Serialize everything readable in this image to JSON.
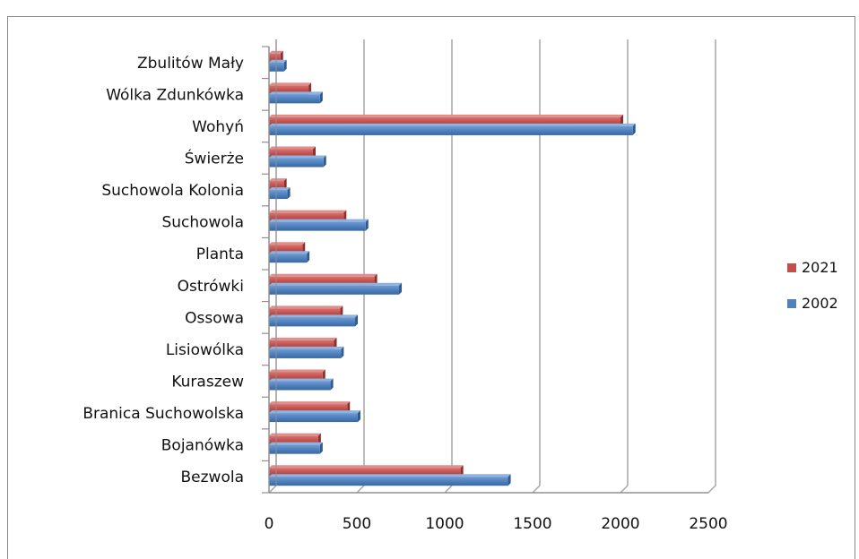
{
  "chart_data": {
    "type": "bar",
    "orientation": "horizontal",
    "categories": [
      "Zbulitów Mały",
      "Wólka Zdunkówka",
      "Wohyń",
      "Świerże",
      "Suchowola Kolonia",
      "Suchowola",
      "Planta",
      "Ostrówki",
      "Ossowa",
      "Lisiowólka",
      "Kuraszew",
      "Branica Suchowolska",
      "Bojanówka",
      "Bezwola"
    ],
    "series": [
      {
        "name": "2021",
        "color": "#c0504d",
        "values": [
          65,
          225,
          2000,
          250,
          85,
          425,
          190,
          600,
          405,
          370,
          305,
          445,
          280,
          1090
        ]
      },
      {
        "name": "2002",
        "color": "#4f81bd",
        "values": [
          85,
          290,
          2070,
          310,
          105,
          550,
          215,
          740,
          490,
          410,
          350,
          505,
          290,
          1360
        ]
      }
    ],
    "xticks": [
      "0",
      "500",
      "1000",
      "1500",
      "2000",
      "2500"
    ],
    "xlim": [
      0,
      2500
    ],
    "grid": true,
    "legend_position": "right"
  }
}
